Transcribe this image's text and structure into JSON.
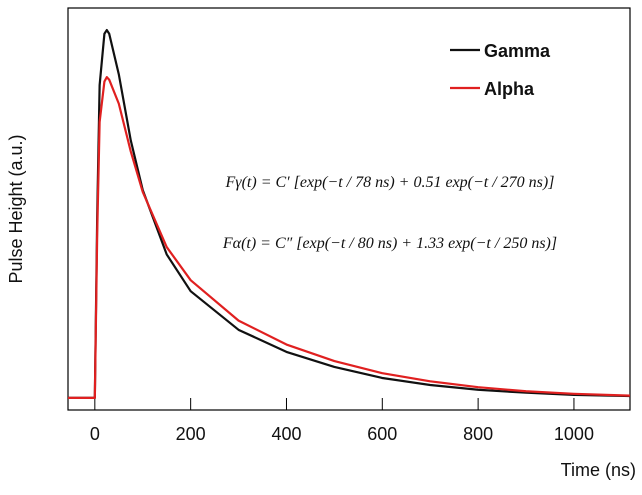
{
  "chart_data": {
    "type": "line",
    "x_label": "Time (ns)",
    "y_label": "Pulse Height (a.u.)",
    "x": [
      -56,
      -5,
      0,
      5,
      10,
      20,
      25,
      30,
      50,
      75,
      100,
      150,
      200,
      300,
      400,
      500,
      600,
      700,
      800,
      900,
      1000,
      1117
    ],
    "series": [
      {
        "name": "Gamma",
        "color": "#111111",
        "values": [
          0,
          0,
          0,
          0.5,
          0.85,
          0.99,
          1.0,
          0.99,
          0.88,
          0.7,
          0.565,
          0.39,
          0.29,
          0.185,
          0.125,
          0.084,
          0.054,
          0.035,
          0.022,
          0.014,
          0.008,
          0.005
        ]
      },
      {
        "name": "Alpha",
        "color": "#e02020",
        "values": [
          0,
          0,
          0,
          0.45,
          0.75,
          0.86,
          0.872,
          0.865,
          0.8,
          0.67,
          0.56,
          0.41,
          0.32,
          0.21,
          0.145,
          0.1,
          0.067,
          0.045,
          0.029,
          0.018,
          0.011,
          0.006
        ]
      }
    ],
    "xlim": [
      -56,
      1117
    ],
    "ylim": [
      -0.033,
      1.06
    ],
    "xticks": [
      0,
      200,
      400,
      600,
      800,
      1000
    ],
    "legend": "upper-right",
    "annotations": [
      "Fγ(t) = C′ [exp(−t / 78 ns) + 0.51 exp(−t / 270 ns)]",
      "Fα(t) = C″ [exp(−t / 80 ns) + 1.33 exp(−t / 250 ns)]"
    ]
  }
}
